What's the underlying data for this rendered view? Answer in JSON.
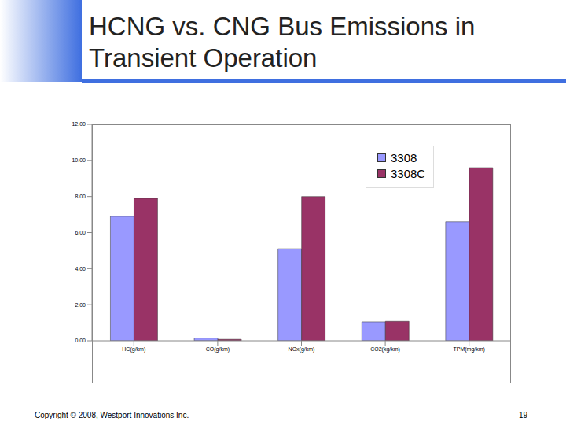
{
  "chart_data": {
    "type": "bar",
    "title": "HCNG vs. CNG Bus Emissions in Transient Operation",
    "categories": [
      "HC(g/km)",
      "CO(g/km)",
      "NOx(g/km)",
      "CO2(kg/km)",
      "TPM(mg/km)"
    ],
    "series": [
      {
        "name": "3308",
        "color": "#9999ff",
        "values": [
          6.9,
          0.15,
          5.1,
          1.05,
          6.6
        ]
      },
      {
        "name": "3308C",
        "color": "#993366",
        "values": [
          7.9,
          0.08,
          8.0,
          1.08,
          9.6
        ]
      }
    ],
    "ylim": [
      0,
      12
    ],
    "yticks": [
      {
        "value": 0,
        "label": "0.00"
      },
      {
        "value": 2,
        "label": "2.00"
      },
      {
        "value": 4,
        "label": "4.00"
      },
      {
        "value": 6,
        "label": "6.00"
      },
      {
        "value": 8,
        "label": "8.00"
      },
      {
        "value": 10,
        "label": "10.00"
      },
      {
        "value": 12,
        "label": "12.00"
      }
    ],
    "grid": false,
    "legend": "upper right"
  },
  "slide": {
    "footer": "Copyright © 2008, Westport Innovations Inc.",
    "page_number": 19
  }
}
